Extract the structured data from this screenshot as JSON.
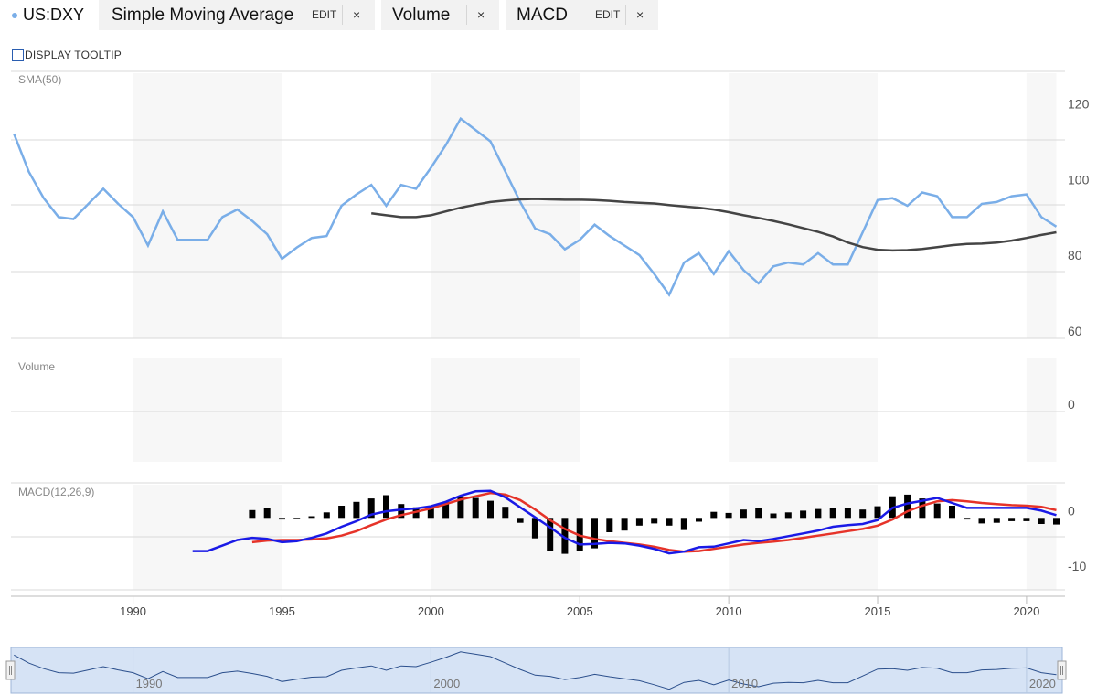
{
  "toolbar": {
    "symbol": "US:DXY",
    "tabs": [
      {
        "label": "Simple Moving Average",
        "edit": "EDIT",
        "close": "×"
      },
      {
        "label": "Volume",
        "close": "×"
      },
      {
        "label": "MACD",
        "edit": "EDIT",
        "close": "×"
      }
    ]
  },
  "tooltip_toggle": {
    "label": "DISPLAY TOOLTIP",
    "checked": false
  },
  "colors": {
    "price": "#7aaee8",
    "sma": "#444444",
    "macd": "#1a1ae6",
    "signal": "#e63329",
    "histogram": "#000000",
    "band": "#f7f7f7",
    "navigator_fill": "#d6e3f5"
  },
  "chart_data": [
    {
      "type": "line",
      "panel": "price",
      "label": "SMA(50)",
      "xlim": [
        1985.9,
        2021.2
      ],
      "ylim": [
        60,
        130
      ],
      "y_ticks": [
        60,
        80,
        100,
        120
      ],
      "series": [
        {
          "name": "US:DXY",
          "x": [
            1986.0,
            1986.5,
            1987.0,
            1987.5,
            1988.0,
            1988.5,
            1989.0,
            1989.5,
            1990.0,
            1990.5,
            1991.0,
            1991.5,
            1992.0,
            1992.5,
            1993.0,
            1993.5,
            1994.0,
            1994.5,
            1995.0,
            1995.5,
            1996.0,
            1996.5,
            1997.0,
            1997.5,
            1998.0,
            1998.5,
            1999.0,
            1999.5,
            2000.0,
            2000.5,
            2001.0,
            2001.5,
            2002.0,
            2002.5,
            2003.0,
            2003.5,
            2004.0,
            2004.5,
            2005.0,
            2005.5,
            2006.0,
            2006.5,
            2007.0,
            2007.5,
            2008.0,
            2008.5,
            2009.0,
            2009.5,
            2010.0,
            2010.5,
            2011.0,
            2011.5,
            2012.0,
            2012.5,
            2013.0,
            2013.5,
            2014.0,
            2014.5,
            2015.0,
            2015.5,
            2016.0,
            2016.5,
            2017.0,
            2017.5,
            2018.0,
            2018.5,
            2019.0,
            2019.5,
            2020.0,
            2020.5,
            2021.0
          ],
          "values": [
            114,
            104,
            97,
            92,
            91.5,
            95.5,
            99.5,
            95.5,
            92,
            84.5,
            93.5,
            86,
            86,
            86,
            92,
            94,
            91,
            87.5,
            81,
            84,
            86.5,
            87,
            95,
            98,
            100.5,
            95,
            100.5,
            99.5,
            105,
            111,
            118,
            115,
            112,
            104,
            96,
            89,
            87.5,
            83.5,
            86,
            90,
            87,
            84.5,
            82,
            77,
            71.5,
            80,
            82.5,
            77,
            83,
            78,
            74.5,
            79,
            80,
            79.5,
            82.5,
            79.5,
            79.5,
            88,
            96.5,
            97,
            95,
            98.5,
            97.5,
            92,
            92,
            95.5,
            96,
            97.5,
            98,
            92,
            89.5
          ]
        },
        {
          "name": "SMA(50)",
          "x": [
            1998.0,
            1998.5,
            1999.0,
            1999.5,
            2000.0,
            2000.5,
            2001.0,
            2001.5,
            2002.0,
            2002.5,
            2003.0,
            2003.5,
            2004.0,
            2004.5,
            2005.0,
            2005.5,
            2006.0,
            2006.5,
            2007.0,
            2007.5,
            2008.0,
            2008.5,
            2009.0,
            2009.5,
            2010.0,
            2010.5,
            2011.0,
            2011.5,
            2012.0,
            2012.5,
            2013.0,
            2013.5,
            2014.0,
            2014.5,
            2015.0,
            2015.5,
            2016.0,
            2016.5,
            2017.0,
            2017.5,
            2018.0,
            2018.5,
            2019.0,
            2019.5,
            2020.0,
            2020.5,
            2021.0
          ],
          "values": [
            93,
            92.5,
            92,
            92,
            92.5,
            93.5,
            94.5,
            95.3,
            96,
            96.4,
            96.7,
            96.8,
            96.7,
            96.6,
            96.6,
            96.5,
            96.3,
            96,
            95.8,
            95.6,
            95.2,
            94.8,
            94.5,
            94,
            93.3,
            92.5,
            91.8,
            91,
            90.1,
            89.1,
            88.1,
            86.9,
            85.3,
            84.1,
            83.4,
            83.2,
            83.3,
            83.6,
            84.1,
            84.6,
            84.9,
            85,
            85.3,
            85.8,
            86.5,
            87.3,
            88
          ]
        }
      ]
    },
    {
      "type": "bar",
      "panel": "volume",
      "label": "Volume",
      "y_ticks": [
        0
      ],
      "values": []
    },
    {
      "type": "line",
      "panel": "macd",
      "label": "MACD(12,26,9)",
      "ylim": [
        -13,
        6
      ],
      "y_ticks": [
        -10,
        0
      ],
      "series": [
        {
          "name": "MACD",
          "x": [
            1992.0,
            1992.5,
            1993.0,
            1993.5,
            1994.0,
            1994.5,
            1995.0,
            1995.5,
            1996.0,
            1996.5,
            1997.0,
            1997.5,
            1998.0,
            1998.5,
            1999.0,
            1999.5,
            2000.0,
            2000.5,
            2001.0,
            2001.5,
            2002.0,
            2002.5,
            2003.0,
            2003.5,
            2004.0,
            2004.5,
            2005.0,
            2005.5,
            2006.0,
            2006.5,
            2007.0,
            2007.5,
            2008.0,
            2008.5,
            2009.0,
            2009.5,
            2010.0,
            2010.5,
            2011.0,
            2011.5,
            2012.0,
            2012.5,
            2013.0,
            2013.5,
            2014.0,
            2014.5,
            2015.0,
            2015.5,
            2016.0,
            2016.5,
            2017.0,
            2017.5,
            2018.0,
            2018.5,
            2019.0,
            2019.5,
            2020.0,
            2020.5,
            2021.0
          ],
          "values": [
            -6,
            -6,
            -5,
            -4,
            -3.6,
            -3.8,
            -4.4,
            -4.2,
            -3.6,
            -2.8,
            -1.6,
            -0.6,
            0.6,
            1.2,
            1.5,
            1.7,
            2.1,
            2.9,
            4,
            4.8,
            4.9,
            3.7,
            1.9,
            0.1,
            -1.7,
            -3.6,
            -4.8,
            -4.7,
            -4.5,
            -4.6,
            -5,
            -5.6,
            -6.4,
            -6.1,
            -5.3,
            -5.2,
            -4.6,
            -4,
            -4.2,
            -3.8,
            -3.3,
            -2.8,
            -2.3,
            -1.6,
            -1.3,
            -1.1,
            -0.4,
            1.8,
            2.6,
            3.1,
            3.6,
            2.7,
            1.8,
            1.8,
            1.8,
            1.8,
            1.8,
            1.3,
            0.5
          ]
        },
        {
          "name": "Signal",
          "x": [
            1994.0,
            1994.5,
            1995.0,
            1995.5,
            1996.0,
            1996.5,
            1997.0,
            1997.5,
            1998.0,
            1998.5,
            1999.0,
            1999.5,
            2000.0,
            2000.5,
            2001.0,
            2001.5,
            2002.0,
            2002.5,
            2003.0,
            2003.5,
            2004.0,
            2004.5,
            2005.0,
            2005.5,
            2006.0,
            2006.5,
            2007.0,
            2007.5,
            2008.0,
            2008.5,
            2009.0,
            2009.5,
            2010.0,
            2010.5,
            2011.0,
            2011.5,
            2012.0,
            2012.5,
            2013.0,
            2013.5,
            2014.0,
            2014.5,
            2015.0,
            2015.5,
            2016.0,
            2016.5,
            2017.0,
            2017.5,
            2018.0,
            2018.5,
            2019.0,
            2019.5,
            2020.0,
            2020.5,
            2021.0
          ],
          "values": [
            -4.4,
            -4.1,
            -4,
            -4,
            -3.9,
            -3.7,
            -3.2,
            -2.4,
            -1.3,
            -0.3,
            0.5,
            1.1,
            1.7,
            2.5,
            3.3,
            3.9,
            4.5,
            4.2,
            3.2,
            1.5,
            -0.4,
            -2,
            -3.2,
            -3.8,
            -4.2,
            -4.5,
            -4.8,
            -5.2,
            -5.8,
            -6.1,
            -6,
            -5.6,
            -5.2,
            -4.8,
            -4.5,
            -4.3,
            -4,
            -3.6,
            -3.2,
            -2.8,
            -2.4,
            -2,
            -1.4,
            -0.3,
            1.2,
            2.2,
            3,
            3.2,
            3,
            2.7,
            2.5,
            2.3,
            2.2,
            2,
            1.4
          ]
        },
        {
          "name": "Histogram",
          "x": [
            1994.0,
            1994.5,
            1995.0,
            1995.5,
            1996.0,
            1996.5,
            1997.0,
            1997.5,
            1998.0,
            1998.5,
            1999.0,
            1999.5,
            2000.0,
            2000.5,
            2001.0,
            2001.5,
            2002.0,
            2002.5,
            2003.0,
            2003.5,
            2004.0,
            2004.5,
            2005.0,
            2005.5,
            2006.0,
            2006.5,
            2007.0,
            2007.5,
            2008.0,
            2008.5,
            2009.0,
            2009.5,
            2010.0,
            2010.5,
            2011.0,
            2011.5,
            2012.0,
            2012.5,
            2013.0,
            2013.5,
            2014.0,
            2014.5,
            2015.0,
            2015.5,
            2016.0,
            2016.5,
            2017.0,
            2017.5,
            2018.0,
            2018.5,
            2019.0,
            2019.5,
            2020.0,
            2020.5,
            2021.0
          ],
          "values": [
            1.4,
            1.7,
            -0.3,
            -0.2,
            0.3,
            1,
            2.2,
            2.9,
            3.5,
            4.1,
            2.5,
            1.9,
            2,
            2.9,
            3.9,
            3.6,
            3.1,
            2,
            -0.9,
            -3.7,
            -5.9,
            -6.5,
            -6,
            -5.5,
            -2.6,
            -2.3,
            -1.4,
            -1,
            -1.4,
            -2.2,
            -0.7,
            1.1,
            0.9,
            1.5,
            1.7,
            0.8,
            1,
            1.3,
            1.6,
            1.7,
            1.8,
            1.5,
            2.1,
            3.9,
            4.2,
            3.5,
            2.6,
            2.2,
            -0.3,
            -1,
            -0.9,
            -0.6,
            -0.6,
            -1.1,
            -1.2
          ]
        }
      ]
    }
  ],
  "x_axis": {
    "ticks": [
      "1990",
      "1995",
      "2000",
      "2005",
      "2010",
      "2015",
      "2020"
    ]
  },
  "navigator": {
    "labels": [
      "1990",
      "2000",
      "2010",
      "2020"
    ],
    "xlim": [
      1985.9,
      2021.2
    ],
    "values": [
      114,
      104,
      97,
      92,
      91.5,
      95.5,
      99.5,
      95.5,
      92,
      84.5,
      93.5,
      86,
      86,
      86,
      92,
      94,
      91,
      87.5,
      81,
      84,
      86.5,
      87,
      95,
      98,
      100.5,
      95,
      100.5,
      99.5,
      105,
      111,
      118,
      115,
      112,
      104,
      96,
      89,
      87.5,
      83.5,
      86,
      90,
      87,
      84.5,
      82,
      77,
      71.5,
      80,
      82.5,
      77,
      83,
      78,
      74.5,
      79,
      80,
      79.5,
      82.5,
      79.5,
      79.5,
      88,
      96.5,
      97,
      95,
      98.5,
      97.5,
      92,
      92,
      95.5,
      96,
      97.5,
      98,
      92,
      89.5
    ]
  }
}
